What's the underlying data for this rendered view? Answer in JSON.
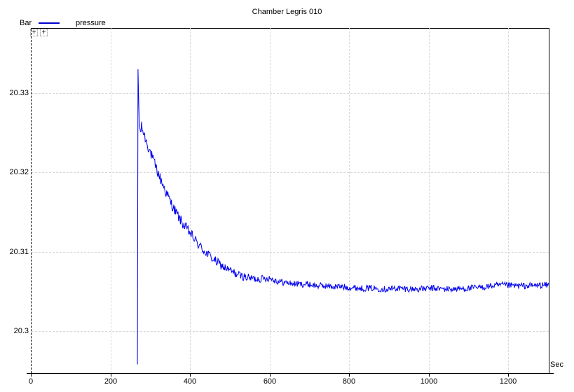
{
  "window": {
    "background": "#ffffff"
  },
  "header": {
    "title": "Chamber Legris 010"
  },
  "legend": {
    "series_label": "pressure",
    "swatch_color": "#0000cc"
  },
  "axes": {
    "y_unit": "Bar",
    "x_unit": "Sec",
    "axis_color": "#000000",
    "grid_color": "#d9d9d9"
  },
  "corner_markers": {
    "marker1": "+",
    "marker2": "+"
  },
  "chart_data": {
    "type": "line",
    "title": "Chamber Legris 010",
    "xlabel": "Sec",
    "ylabel": "Bar",
    "grid": "dashed, light gray, both axes",
    "legend_position": "top-left",
    "xlim": [
      0,
      1303
    ],
    "ylim": [
      20.2947,
      20.3382
    ],
    "x_ticks": [
      {
        "label": "0",
        "value": 0
      },
      {
        "label": "200",
        "value": 200
      },
      {
        "label": "400",
        "value": 400
      },
      {
        "label": "600",
        "value": 600
      },
      {
        "label": "800",
        "value": 800
      },
      {
        "label": "1000",
        "value": 1000
      },
      {
        "label": "1200",
        "value": 1200
      }
    ],
    "y_ticks": [
      {
        "label": "20.3",
        "value": 20.3
      },
      {
        "label": "20.31",
        "value": 20.31
      },
      {
        "label": "20.32",
        "value": 20.32
      },
      {
        "label": "20.33",
        "value": 20.33
      }
    ],
    "series": [
      {
        "name": "pressure",
        "color": "#0000ee",
        "description": "flat/off-scale before ~268s, sharp pressurization spike to 20.333 at ~270s, noisy exponential decay settling near 20.3054, slight rise at tail",
        "keypoints": [
          [
            268,
            20.2958
          ],
          [
            269.5,
            20.333
          ],
          [
            272,
            20.327
          ],
          [
            275,
            20.3248
          ],
          [
            278,
            20.3258
          ],
          [
            282,
            20.3252
          ],
          [
            290,
            20.324
          ],
          [
            300,
            20.3226
          ],
          [
            310,
            20.3212
          ],
          [
            320,
            20.3199
          ],
          [
            330,
            20.3187
          ],
          [
            340,
            20.3175
          ],
          [
            350,
            20.3164
          ],
          [
            360,
            20.3154
          ],
          [
            370,
            20.3145
          ],
          [
            380,
            20.3137
          ],
          [
            390,
            20.313
          ],
          [
            400,
            20.3124
          ],
          [
            415,
            20.3113
          ],
          [
            430,
            20.3104
          ],
          [
            445,
            20.3097
          ],
          [
            460,
            20.309
          ],
          [
            475,
            20.3084
          ],
          [
            490,
            20.3079
          ],
          [
            505,
            20.3075
          ],
          [
            520,
            20.3071
          ],
          [
            540,
            20.3068
          ],
          [
            560,
            20.3066
          ],
          [
            580,
            20.3066
          ],
          [
            600,
            20.3067
          ],
          [
            620,
            20.3063
          ],
          [
            640,
            20.3061
          ],
          [
            660,
            20.306
          ],
          [
            680,
            20.3059
          ],
          [
            700,
            20.3059
          ],
          [
            720,
            20.3057
          ],
          [
            740,
            20.3057
          ],
          [
            760,
            20.3056
          ],
          [
            780,
            20.3056
          ],
          [
            800,
            20.3055
          ],
          [
            830,
            20.3054
          ],
          [
            860,
            20.3054
          ],
          [
            890,
            20.3053
          ],
          [
            920,
            20.3054
          ],
          [
            950,
            20.3053
          ],
          [
            980,
            20.3053
          ],
          [
            1010,
            20.3054
          ],
          [
            1040,
            20.3053
          ],
          [
            1070,
            20.3053
          ],
          [
            1100,
            20.3054
          ],
          [
            1130,
            20.3055
          ],
          [
            1160,
            20.3057
          ],
          [
            1190,
            20.3058
          ],
          [
            1220,
            20.3057
          ],
          [
            1250,
            20.3057
          ],
          [
            1280,
            20.3058
          ],
          [
            1303,
            20.3058
          ]
        ],
        "noise_envelope": [
          [
            268,
            0.0
          ],
          [
            270,
            0.0
          ],
          [
            274,
            0.0007
          ],
          [
            350,
            0.0007
          ],
          [
            450,
            0.0006
          ],
          [
            550,
            0.0005
          ],
          [
            650,
            0.0004
          ],
          [
            1303,
            0.0004
          ]
        ],
        "sample_step_sec": 1.5
      }
    ]
  }
}
